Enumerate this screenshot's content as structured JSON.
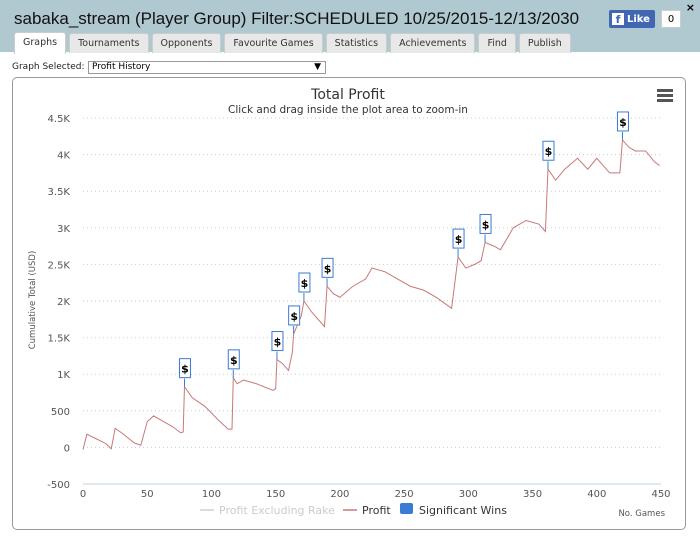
{
  "header": {
    "title": "sabaka_stream (Player Group) Filter:SCHEDULED 10/25/2015-12/13/2030",
    "like_label": "Like",
    "like_count": "0",
    "close": "×"
  },
  "tabs": [
    "Graphs",
    "Tournaments",
    "Opponents",
    "Favourite Games",
    "Statistics",
    "Achievements",
    "Find",
    "Publish"
  ],
  "graph_select": {
    "label": "Graph Selected:",
    "value": "Profit History"
  },
  "colors": {
    "profit": "#c87878",
    "flag": "#3a7bd5",
    "excl": "#d0d0d0"
  },
  "chart_data": {
    "type": "line",
    "title": "Total Profit",
    "subtitle": "Click and drag inside the plot area to zoom-in",
    "xlabel": "No. Games",
    "ylabel": "Cumulative Total (USD)",
    "xlim": [
      0,
      450
    ],
    "ylim": [
      -500,
      4500
    ],
    "xticks": [
      0,
      50,
      100,
      150,
      200,
      250,
      300,
      350,
      400,
      450
    ],
    "yticks": [
      {
        "v": -500,
        "l": "-500"
      },
      {
        "v": 0,
        "l": "0"
      },
      {
        "v": 500,
        "l": "500"
      },
      {
        "v": 1000,
        "l": "1K"
      },
      {
        "v": 1500,
        "l": "1.5K"
      },
      {
        "v": 2000,
        "l": "2K"
      },
      {
        "v": 2500,
        "l": "2.5K"
      },
      {
        "v": 3000,
        "l": "3K"
      },
      {
        "v": 3500,
        "l": "3.5K"
      },
      {
        "v": 4000,
        "l": "4K"
      },
      {
        "v": 4500,
        "l": "4.5K"
      }
    ],
    "legend": [
      {
        "name": "Profit Excluding Rake",
        "hidden": true
      },
      {
        "name": "Profit"
      },
      {
        "name": "Significant Wins"
      }
    ],
    "profit": [
      [
        0,
        -30
      ],
      [
        3,
        180
      ],
      [
        10,
        120
      ],
      [
        18,
        50
      ],
      [
        22,
        -20
      ],
      [
        25,
        260
      ],
      [
        30,
        200
      ],
      [
        35,
        130
      ],
      [
        40,
        60
      ],
      [
        45,
        30
      ],
      [
        50,
        350
      ],
      [
        55,
        430
      ],
      [
        60,
        380
      ],
      [
        70,
        280
      ],
      [
        76,
        200
      ],
      [
        78,
        210
      ],
      [
        79,
        830
      ],
      [
        85,
        680
      ],
      [
        95,
        560
      ],
      [
        105,
        380
      ],
      [
        113,
        250
      ],
      [
        116,
        250
      ],
      [
        117,
        950
      ],
      [
        120,
        870
      ],
      [
        125,
        920
      ],
      [
        135,
        870
      ],
      [
        142,
        820
      ],
      [
        148,
        780
      ],
      [
        150,
        800
      ],
      [
        151,
        1200
      ],
      [
        155,
        1150
      ],
      [
        160,
        1050
      ],
      [
        163,
        1300
      ],
      [
        164,
        1550
      ],
      [
        170,
        1800
      ],
      [
        172,
        2000
      ],
      [
        178,
        1850
      ],
      [
        188,
        1650
      ],
      [
        190,
        2200
      ],
      [
        195,
        2100
      ],
      [
        200,
        2050
      ],
      [
        210,
        2200
      ],
      [
        220,
        2300
      ],
      [
        225,
        2450
      ],
      [
        235,
        2400
      ],
      [
        245,
        2300
      ],
      [
        255,
        2200
      ],
      [
        265,
        2150
      ],
      [
        275,
        2050
      ],
      [
        287,
        1900
      ],
      [
        292,
        2600
      ],
      [
        298,
        2450
      ],
      [
        305,
        2500
      ],
      [
        310,
        2550
      ],
      [
        313,
        2800
      ],
      [
        320,
        2750
      ],
      [
        325,
        2700
      ],
      [
        335,
        3000
      ],
      [
        345,
        3100
      ],
      [
        355,
        3050
      ],
      [
        360,
        2950
      ],
      [
        362,
        3800
      ],
      [
        368,
        3650
      ],
      [
        375,
        3800
      ],
      [
        385,
        3950
      ],
      [
        393,
        3800
      ],
      [
        400,
        3950
      ],
      [
        410,
        3750
      ],
      [
        418,
        3750
      ],
      [
        420,
        4200
      ],
      [
        425,
        4100
      ],
      [
        430,
        4050
      ],
      [
        438,
        4050
      ],
      [
        445,
        3900
      ],
      [
        449,
        3850
      ]
    ],
    "significant_wins": [
      [
        79,
        830
      ],
      [
        117,
        950
      ],
      [
        151,
        1200
      ],
      [
        164,
        1550
      ],
      [
        172,
        2000
      ],
      [
        190,
        2200
      ],
      [
        292,
        2600
      ],
      [
        313,
        2800
      ],
      [
        362,
        3800
      ],
      [
        420,
        4200
      ]
    ],
    "flag_label": "$"
  }
}
